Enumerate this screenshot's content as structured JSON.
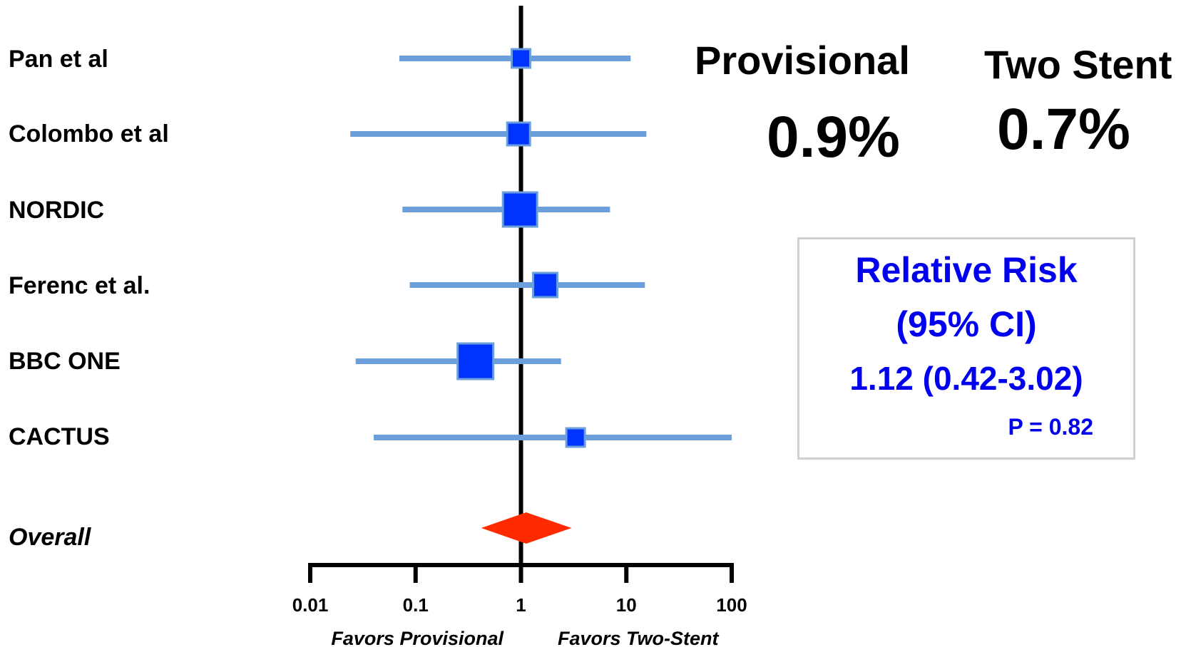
{
  "colors": {
    "ci_line": "#6a9fdc",
    "point_fill": "#0033ff",
    "point_edge": "#6a9fdc",
    "overall_diamond": "#ff2a00",
    "axis": "#000000",
    "rr_text": "#0000ee",
    "box_border": "#d0d0d0"
  },
  "chart_data": {
    "type": "forest",
    "x_scale": "log",
    "xlim": [
      0.01,
      100
    ],
    "x_ticks": [
      0.01,
      0.1,
      1,
      10,
      100
    ],
    "x_tick_labels": [
      "0.01",
      "0.1",
      "1",
      "10",
      "100"
    ],
    "reference_line": 1,
    "favors_left": "Favors Provisional",
    "favors_right": "Favors Two-Stent",
    "studies": [
      {
        "label": "Pan et al",
        "estimate": 1.0,
        "lower": 0.07,
        "upper": 11
      },
      {
        "label": "Colombo et al",
        "estimate": 0.95,
        "lower": 0.024,
        "upper": 15.5
      },
      {
        "label": "NORDIC",
        "estimate": 0.98,
        "lower": 0.075,
        "upper": 7
      },
      {
        "label": "Ferenc et al.",
        "estimate": 1.7,
        "lower": 0.088,
        "upper": 15
      },
      {
        "label": "BBC ONE",
        "estimate": 0.37,
        "lower": 0.027,
        "upper": 2.4
      },
      {
        "label": "CACTUS",
        "estimate": 3.3,
        "lower": 0.04,
        "upper": 100
      }
    ],
    "overall": {
      "label": "Overall",
      "estimate": 1.12,
      "lower": 0.42,
      "upper": 3.02
    }
  },
  "groups": {
    "provisional": {
      "label": "Provisional",
      "value": "0.9%"
    },
    "two_stent": {
      "label": "Two Stent",
      "value": "0.7%"
    }
  },
  "relative_risk": {
    "title": "Relative Risk",
    "subtitle": "(95% CI)",
    "value": "1.12 (0.42-3.02)",
    "p_value": "P = 0.82"
  }
}
